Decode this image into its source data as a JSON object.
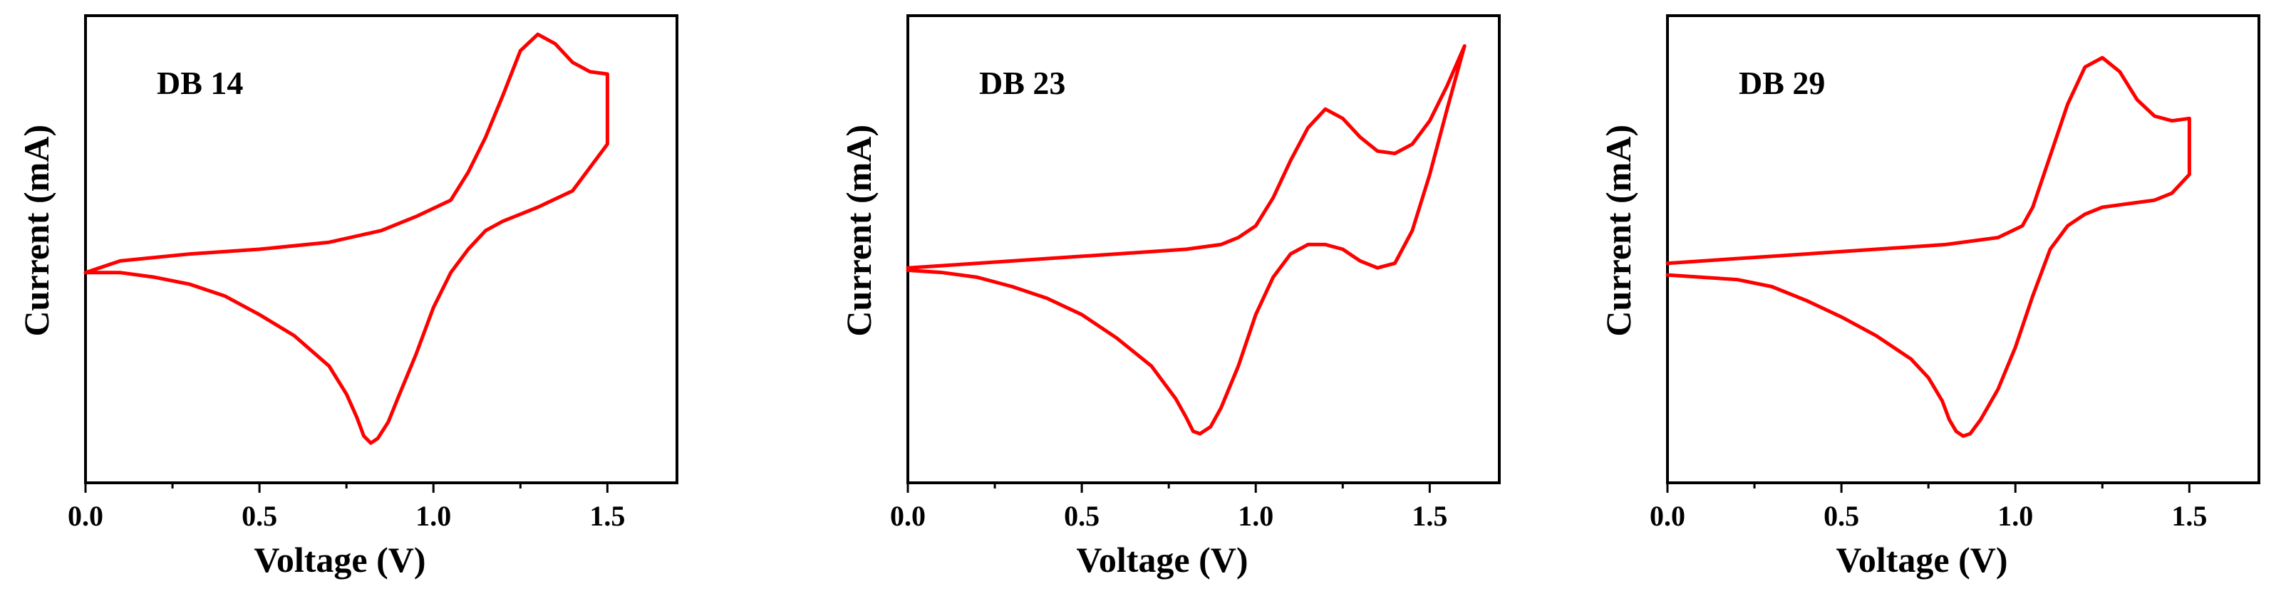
{
  "chart_data": [
    {
      "type": "line",
      "title": "DB 14",
      "xlabel": "Voltage (V)",
      "ylabel": "Current (mA)",
      "xlim": [
        0.0,
        1.7
      ],
      "ylim": [
        -1.0,
        1.0
      ],
      "xticks": [
        "0.0",
        "0.5",
        "1.0",
        "1.5"
      ],
      "grid": false,
      "series": [
        {
          "name": "DB 14",
          "color": "#ff0000",
          "x": [
            0.0,
            0.1,
            0.3,
            0.5,
            0.7,
            0.85,
            0.95,
            1.05,
            1.1,
            1.15,
            1.2,
            1.25,
            1.3,
            1.35,
            1.4,
            1.45,
            1.5,
            1.5,
            1.45,
            1.4,
            1.3,
            1.25,
            1.2,
            1.15,
            1.1,
            1.05,
            1.0,
            0.95,
            0.9,
            0.87,
            0.84,
            0.82,
            0.8,
            0.78,
            0.75,
            0.7,
            0.6,
            0.5,
            0.4,
            0.3,
            0.2,
            0.1,
            0.0
          ],
          "y": [
            -0.1,
            -0.05,
            -0.02,
            0.0,
            0.03,
            0.08,
            0.14,
            0.21,
            0.33,
            0.48,
            0.66,
            0.85,
            0.92,
            0.88,
            0.8,
            0.76,
            0.75,
            0.45,
            0.35,
            0.25,
            0.18,
            0.15,
            0.12,
            0.08,
            0.0,
            -0.1,
            -0.25,
            -0.45,
            -0.63,
            -0.74,
            -0.81,
            -0.83,
            -0.8,
            -0.72,
            -0.62,
            -0.5,
            -0.37,
            -0.28,
            -0.2,
            -0.15,
            -0.12,
            -0.1,
            -0.1
          ]
        }
      ]
    },
    {
      "type": "line",
      "title": "DB 23",
      "xlabel": "Voltage (V)",
      "ylabel": "Current (mA)",
      "xlim": [
        0.0,
        1.7
      ],
      "ylim": [
        -1.0,
        1.0
      ],
      "xticks": [
        "0.0",
        "0.5",
        "1.0",
        "1.5"
      ],
      "grid": false,
      "series": [
        {
          "name": "DB 23",
          "color": "#ff0000",
          "x": [
            0.0,
            0.2,
            0.4,
            0.6,
            0.8,
            0.9,
            0.95,
            1.0,
            1.05,
            1.1,
            1.15,
            1.2,
            1.25,
            1.3,
            1.35,
            1.4,
            1.45,
            1.5,
            1.55,
            1.6,
            1.55,
            1.5,
            1.45,
            1.4,
            1.35,
            1.3,
            1.25,
            1.2,
            1.15,
            1.1,
            1.05,
            1.0,
            0.95,
            0.9,
            0.87,
            0.84,
            0.82,
            0.8,
            0.77,
            0.7,
            0.6,
            0.5,
            0.4,
            0.3,
            0.2,
            0.1,
            0.0
          ],
          "y": [
            -0.08,
            -0.06,
            -0.04,
            -0.02,
            0.0,
            0.02,
            0.05,
            0.1,
            0.22,
            0.38,
            0.52,
            0.6,
            0.56,
            0.48,
            0.42,
            0.41,
            0.45,
            0.55,
            0.7,
            0.87,
            0.6,
            0.32,
            0.08,
            -0.06,
            -0.08,
            -0.05,
            0.0,
            0.02,
            0.02,
            -0.02,
            -0.12,
            -0.28,
            -0.5,
            -0.68,
            -0.76,
            -0.79,
            -0.78,
            -0.72,
            -0.64,
            -0.5,
            -0.38,
            -0.28,
            -0.21,
            -0.16,
            -0.12,
            -0.1,
            -0.09
          ]
        }
      ]
    },
    {
      "type": "line",
      "title": "DB 29",
      "xlabel": "Voltage (V)",
      "ylabel": "Current (mA)",
      "xlim": [
        0.0,
        1.7
      ],
      "ylim": [
        -1.0,
        1.0
      ],
      "xticks": [
        "0.0",
        "0.5",
        "1.0",
        "1.5"
      ],
      "grid": false,
      "series": [
        {
          "name": "DB 29",
          "color": "#ff0000",
          "x": [
            0.0,
            0.2,
            0.4,
            0.6,
            0.8,
            0.95,
            1.02,
            1.05,
            1.1,
            1.15,
            1.2,
            1.25,
            1.3,
            1.35,
            1.4,
            1.45,
            1.5,
            1.5,
            1.45,
            1.4,
            1.35,
            1.3,
            1.25,
            1.2,
            1.15,
            1.1,
            1.05,
            1.0,
            0.95,
            0.9,
            0.87,
            0.85,
            0.83,
            0.81,
            0.79,
            0.75,
            0.7,
            0.6,
            0.5,
            0.4,
            0.3,
            0.2,
            0.1,
            0.0
          ],
          "y": [
            -0.06,
            -0.04,
            -0.02,
            0.0,
            0.02,
            0.05,
            0.1,
            0.18,
            0.4,
            0.62,
            0.78,
            0.82,
            0.76,
            0.64,
            0.57,
            0.55,
            0.56,
            0.32,
            0.24,
            0.21,
            0.2,
            0.19,
            0.18,
            0.15,
            0.1,
            0.0,
            -0.2,
            -0.42,
            -0.6,
            -0.73,
            -0.79,
            -0.8,
            -0.78,
            -0.73,
            -0.65,
            -0.55,
            -0.47,
            -0.37,
            -0.29,
            -0.22,
            -0.16,
            -0.13,
            -0.12,
            -0.11
          ]
        }
      ]
    }
  ]
}
